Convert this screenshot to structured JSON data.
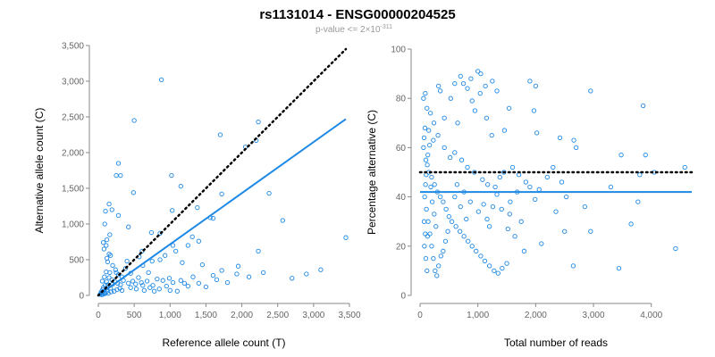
{
  "title": "rs1131014 - ENSG00000204525",
  "subtitle": {
    "prefix": "p-value <= 2×10",
    "exponent": "-311"
  },
  "colors": {
    "points": "#1E88E5",
    "fit_line": "#1E88E5",
    "reference_line": "#000000",
    "axis": "#888888"
  },
  "chart_data": [
    {
      "type": "scatter",
      "xlabel": "Reference allele count (T)",
      "ylabel": "Alternative allele count (C)",
      "xlim": [
        0,
        3500
      ],
      "ylim": [
        0,
        3500
      ],
      "xticks": [
        0,
        500,
        1000,
        1500,
        2000,
        2500,
        3000,
        3500
      ],
      "xtick_labels": [
        "0",
        "500",
        "1,000",
        "1,500",
        "2,000",
        "2,500",
        "3,000",
        "3,500"
      ],
      "yticks": [
        0,
        500,
        1000,
        1500,
        2000,
        2500,
        3000,
        3500
      ],
      "ytick_labels": [
        "0",
        "500",
        "1,000",
        "1,500",
        "2,000",
        "2,500",
        "3,000",
        "3,500"
      ],
      "grid": false,
      "points": [
        [
          880,
          3020
        ],
        [
          500,
          2450
        ],
        [
          1700,
          2250
        ],
        [
          2230,
          2430
        ],
        [
          2200,
          2170
        ],
        [
          2050,
          2080
        ],
        [
          280,
          1850
        ],
        [
          310,
          1680
        ],
        [
          250,
          1680
        ],
        [
          1020,
          1680
        ],
        [
          1150,
          1530
        ],
        [
          1720,
          1420
        ],
        [
          490,
          1440
        ],
        [
          2380,
          1430
        ],
        [
          150,
          1280
        ],
        [
          190,
          1200
        ],
        [
          1380,
          1230
        ],
        [
          1030,
          1190
        ],
        [
          280,
          1120
        ],
        [
          100,
          1180
        ],
        [
          1560,
          1090
        ],
        [
          1600,
          1080
        ],
        [
          2570,
          1050
        ],
        [
          420,
          960
        ],
        [
          90,
          1000
        ],
        [
          160,
          850
        ],
        [
          740,
          880
        ],
        [
          860,
          870
        ],
        [
          1310,
          820
        ],
        [
          3450,
          810
        ],
        [
          1040,
          700
        ],
        [
          2230,
          620
        ],
        [
          610,
          620
        ],
        [
          150,
          580
        ],
        [
          170,
          560
        ],
        [
          400,
          480
        ],
        [
          860,
          500
        ],
        [
          1170,
          460
        ],
        [
          1450,
          430
        ],
        [
          3100,
          360
        ],
        [
          2300,
          320
        ],
        [
          1930,
          300
        ],
        [
          1600,
          280
        ],
        [
          1720,
          350
        ],
        [
          1950,
          410
        ],
        [
          1320,
          260
        ],
        [
          990,
          240
        ],
        [
          700,
          320
        ],
        [
          570,
          540
        ],
        [
          560,
          250
        ],
        [
          820,
          230
        ],
        [
          900,
          210
        ],
        [
          1150,
          210
        ],
        [
          1040,
          180
        ],
        [
          1200,
          170
        ],
        [
          760,
          140
        ],
        [
          950,
          130
        ],
        [
          620,
          140
        ],
        [
          480,
          200
        ],
        [
          330,
          260
        ],
        [
          250,
          320
        ],
        [
          380,
          380
        ],
        [
          200,
          420
        ],
        [
          130,
          470
        ],
        [
          120,
          520
        ],
        [
          80,
          650
        ],
        [
          110,
          700
        ],
        [
          70,
          740
        ],
        [
          120,
          780
        ],
        [
          240,
          360
        ],
        [
          280,
          290
        ],
        [
          310,
          150
        ],
        [
          200,
          160
        ],
        [
          450,
          110
        ],
        [
          530,
          90
        ],
        [
          640,
          70
        ],
        [
          780,
          60
        ],
        [
          330,
          70
        ],
        [
          170,
          100
        ],
        [
          120,
          60
        ],
        [
          90,
          40
        ],
        [
          60,
          30
        ],
        [
          50,
          10
        ],
        [
          80,
          20
        ],
        [
          100,
          30
        ],
        [
          140,
          30
        ],
        [
          180,
          50
        ],
        [
          220,
          60
        ],
        [
          260,
          80
        ],
        [
          300,
          100
        ],
        [
          40,
          50
        ],
        [
          70,
          110
        ],
        [
          55,
          200
        ],
        [
          85,
          260
        ],
        [
          110,
          330
        ],
        [
          150,
          250
        ],
        [
          190,
          220
        ],
        [
          230,
          190
        ],
        [
          270,
          170
        ],
        [
          420,
          170
        ],
        [
          680,
          200
        ],
        [
          520,
          160
        ],
        [
          600,
          180
        ],
        [
          720,
          110
        ],
        [
          850,
          90
        ],
        [
          1000,
          70
        ],
        [
          1100,
          60
        ],
        [
          1250,
          130
        ],
        [
          1400,
          170
        ],
        [
          1500,
          120
        ],
        [
          1650,
          220
        ],
        [
          1800,
          180
        ],
        [
          2100,
          260
        ],
        [
          2700,
          240
        ],
        [
          2900,
          300
        ],
        [
          130,
          150
        ],
        [
          160,
          320
        ],
        [
          350,
          210
        ],
        [
          450,
          310
        ],
        [
          620,
          420
        ],
        [
          750,
          480
        ],
        [
          930,
          560
        ],
        [
          1080,
          620
        ],
        [
          1250,
          700
        ],
        [
          1400,
          760
        ],
        [
          60,
          80
        ],
        [
          95,
          140
        ],
        [
          115,
          190
        ],
        [
          35,
          20
        ],
        [
          25,
          15
        ],
        [
          45,
          35
        ],
        [
          65,
          55
        ]
      ],
      "fit_line": [
        [
          0,
          0
        ],
        [
          3450,
          2470
        ]
      ],
      "reference_line": [
        [
          0,
          0
        ],
        [
          3450,
          3450
        ]
      ]
    },
    {
      "type": "scatter",
      "xlabel": "Total number of reads",
      "ylabel": "Percentage alternative (C)",
      "xlim": [
        0,
        4700
      ],
      "ylim": [
        0,
        100
      ],
      "xticks": [
        0,
        1000,
        2000,
        3000,
        4000
      ],
      "xtick_labels": [
        "0",
        "1,000",
        "2,000",
        "3,000",
        "4,000"
      ],
      "yticks": [
        0,
        20,
        40,
        60,
        80,
        100
      ],
      "ytick_labels": [
        "0",
        "20",
        "40",
        "60",
        "80",
        "100"
      ],
      "grid": false,
      "points": [
        [
          700,
          89
        ],
        [
          1050,
          90
        ],
        [
          1000,
          91
        ],
        [
          880,
          88
        ],
        [
          1250,
          87
        ],
        [
          1900,
          87
        ],
        [
          2000,
          85
        ],
        [
          2950,
          83
        ],
        [
          320,
          85
        ],
        [
          350,
          83
        ],
        [
          600,
          86
        ],
        [
          750,
          86
        ],
        [
          820,
          84
        ],
        [
          1130,
          85
        ],
        [
          1330,
          83
        ],
        [
          530,
          80
        ],
        [
          900,
          79
        ],
        [
          1040,
          82
        ],
        [
          1540,
          76
        ],
        [
          1970,
          75
        ],
        [
          3860,
          77
        ],
        [
          420,
          72
        ],
        [
          650,
          70
        ],
        [
          950,
          75
        ],
        [
          1150,
          72
        ],
        [
          240,
          70
        ],
        [
          180,
          74
        ],
        [
          120,
          76
        ],
        [
          60,
          80
        ],
        [
          90,
          82
        ],
        [
          1460,
          67
        ],
        [
          1240,
          65
        ],
        [
          2020,
          66
        ],
        [
          2420,
          64
        ],
        [
          2660,
          63
        ],
        [
          2700,
          60
        ],
        [
          3480,
          57
        ],
        [
          3900,
          57
        ],
        [
          4580,
          52
        ],
        [
          4050,
          50
        ],
        [
          3800,
          49
        ],
        [
          3300,
          44
        ],
        [
          3770,
          38
        ],
        [
          3650,
          29
        ],
        [
          2530,
          40
        ],
        [
          2060,
          43
        ],
        [
          1990,
          39
        ],
        [
          1550,
          33
        ],
        [
          1200,
          28
        ],
        [
          1520,
          27
        ],
        [
          1640,
          24
        ],
        [
          1800,
          18
        ],
        [
          2100,
          21
        ],
        [
          2350,
          34
        ],
        [
          2500,
          26
        ],
        [
          2650,
          12
        ],
        [
          3440,
          11
        ],
        [
          4420,
          19
        ],
        [
          2850,
          36
        ],
        [
          2950,
          26
        ],
        [
          150,
          67
        ],
        [
          230,
          63
        ],
        [
          310,
          65
        ],
        [
          420,
          60
        ],
        [
          520,
          56
        ],
        [
          600,
          58
        ],
        [
          720,
          55
        ],
        [
          820,
          52
        ],
        [
          940,
          50
        ],
        [
          1080,
          47
        ],
        [
          1170,
          45
        ],
        [
          1300,
          44
        ],
        [
          1380,
          48
        ],
        [
          1450,
          50
        ],
        [
          1600,
          52
        ],
        [
          1710,
          49
        ],
        [
          1830,
          46
        ],
        [
          1900,
          44
        ],
        [
          100,
          55
        ],
        [
          150,
          50
        ],
        [
          200,
          48
        ],
        [
          250,
          45
        ],
        [
          300,
          42
        ],
        [
          350,
          40
        ],
        [
          400,
          38
        ],
        [
          450,
          35
        ],
        [
          500,
          32
        ],
        [
          550,
          30
        ],
        [
          620,
          28
        ],
        [
          690,
          26
        ],
        [
          760,
          24
        ],
        [
          830,
          22
        ],
        [
          900,
          20
        ],
        [
          970,
          18
        ],
        [
          1050,
          16
        ],
        [
          1120,
          14
        ],
        [
          1200,
          12
        ],
        [
          1280,
          10
        ],
        [
          1350,
          9
        ],
        [
          1420,
          11
        ],
        [
          1500,
          13
        ],
        [
          80,
          40
        ],
        [
          110,
          35
        ],
        [
          140,
          30
        ],
        [
          170,
          25
        ],
        [
          200,
          20
        ],
        [
          230,
          15
        ],
        [
          260,
          10
        ],
        [
          290,
          8
        ],
        [
          320,
          12
        ],
        [
          360,
          16
        ],
        [
          400,
          18
        ],
        [
          440,
          22
        ],
        [
          480,
          26
        ],
        [
          60,
          60
        ],
        [
          70,
          64
        ],
        [
          85,
          68
        ],
        [
          95,
          45
        ],
        [
          105,
          49
        ],
        [
          125,
          53
        ],
        [
          135,
          57
        ],
        [
          165,
          61
        ],
        [
          185,
          44
        ],
        [
          210,
          38
        ],
        [
          245,
          33
        ],
        [
          275,
          28
        ],
        [
          600,
          40
        ],
        [
          640,
          45
        ],
        [
          700,
          36
        ],
        [
          760,
          42
        ],
        [
          800,
          31
        ],
        [
          870,
          38
        ],
        [
          1010,
          34
        ],
        [
          1100,
          37
        ],
        [
          1160,
          31
        ],
        [
          1260,
          36
        ],
        [
          1330,
          41
        ],
        [
          1410,
          35
        ],
        [
          1560,
          38
        ],
        [
          1680,
          42
        ],
        [
          1750,
          30
        ],
        [
          2200,
          48
        ],
        [
          2300,
          52
        ],
        [
          2450,
          46
        ],
        [
          70,
          30
        ],
        [
          90,
          25
        ],
        [
          75,
          20
        ],
        [
          100,
          15
        ],
        [
          120,
          10
        ],
        [
          130,
          24
        ]
      ],
      "fit_line": [
        [
          0,
          42
        ],
        [
          4700,
          42
        ]
      ],
      "reference_line": [
        [
          0,
          50
        ],
        [
          4700,
          50
        ]
      ]
    }
  ]
}
